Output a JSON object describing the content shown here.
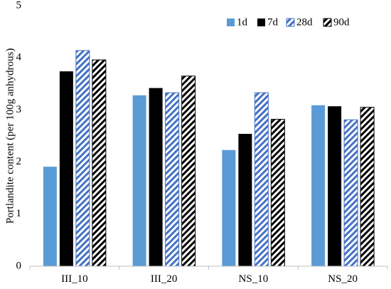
{
  "chart_data": {
    "type": "bar",
    "title": "",
    "xlabel": "",
    "ylabel": "Portlandite content (per 100g anhydrous)",
    "ylim": [
      0,
      5
    ],
    "yticks": [
      0,
      1,
      2,
      3,
      4,
      5
    ],
    "categories": [
      "III_10",
      "III_20",
      "NS_10",
      "NS_20"
    ],
    "series": [
      {
        "name": "1d",
        "values": [
          1.91,
          3.28,
          2.23,
          3.09
        ],
        "color": "#5b9bd5",
        "pattern": "solid"
      },
      {
        "name": "7d",
        "values": [
          3.74,
          3.42,
          2.54,
          3.07
        ],
        "color": "#000000",
        "pattern": "solid"
      },
      {
        "name": "28d",
        "values": [
          4.14,
          3.33,
          3.33,
          2.81
        ],
        "color": "#4472c4",
        "pattern": "hatch"
      },
      {
        "name": "90d",
        "values": [
          3.96,
          3.65,
          2.82,
          3.05
        ],
        "color": "#000000",
        "pattern": "hatch"
      }
    ],
    "legend_position": "top-right",
    "grid": false
  }
}
